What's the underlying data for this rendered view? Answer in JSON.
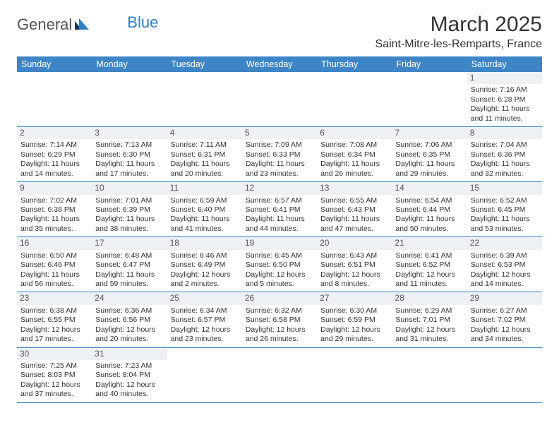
{
  "logo": {
    "textA": "General",
    "textB": "Blue"
  },
  "title": "March 2025",
  "location": "Saint-Mitre-les-Remparts, France",
  "colors": {
    "headerBar": "#3d85c6",
    "rowDivider": "#3d85c6",
    "dayNumBg": "#eef1f3",
    "text": "#333333",
    "logoBlue": "#2f7fc2",
    "background": "#ffffff"
  },
  "weekdays": [
    "Sunday",
    "Monday",
    "Tuesday",
    "Wednesday",
    "Thursday",
    "Friday",
    "Saturday"
  ],
  "weeks": [
    [
      null,
      null,
      null,
      null,
      null,
      null,
      {
        "n": "1",
        "sunrise": "Sunrise: 7:16 AM",
        "sunset": "Sunset: 6:28 PM",
        "day1": "Daylight: 11 hours",
        "day2": "and 11 minutes."
      }
    ],
    [
      {
        "n": "2",
        "sunrise": "Sunrise: 7:14 AM",
        "sunset": "Sunset: 6:29 PM",
        "day1": "Daylight: 11 hours",
        "day2": "and 14 minutes."
      },
      {
        "n": "3",
        "sunrise": "Sunrise: 7:13 AM",
        "sunset": "Sunset: 6:30 PM",
        "day1": "Daylight: 11 hours",
        "day2": "and 17 minutes."
      },
      {
        "n": "4",
        "sunrise": "Sunrise: 7:11 AM",
        "sunset": "Sunset: 6:31 PM",
        "day1": "Daylight: 11 hours",
        "day2": "and 20 minutes."
      },
      {
        "n": "5",
        "sunrise": "Sunrise: 7:09 AM",
        "sunset": "Sunset: 6:33 PM",
        "day1": "Daylight: 11 hours",
        "day2": "and 23 minutes."
      },
      {
        "n": "6",
        "sunrise": "Sunrise: 7:08 AM",
        "sunset": "Sunset: 6:34 PM",
        "day1": "Daylight: 11 hours",
        "day2": "and 26 minutes."
      },
      {
        "n": "7",
        "sunrise": "Sunrise: 7:06 AM",
        "sunset": "Sunset: 6:35 PM",
        "day1": "Daylight: 11 hours",
        "day2": "and 29 minutes."
      },
      {
        "n": "8",
        "sunrise": "Sunrise: 7:04 AM",
        "sunset": "Sunset: 6:36 PM",
        "day1": "Daylight: 11 hours",
        "day2": "and 32 minutes."
      }
    ],
    [
      {
        "n": "9",
        "sunrise": "Sunrise: 7:02 AM",
        "sunset": "Sunset: 6:38 PM",
        "day1": "Daylight: 11 hours",
        "day2": "and 35 minutes."
      },
      {
        "n": "10",
        "sunrise": "Sunrise: 7:01 AM",
        "sunset": "Sunset: 6:39 PM",
        "day1": "Daylight: 11 hours",
        "day2": "and 38 minutes."
      },
      {
        "n": "11",
        "sunrise": "Sunrise: 6:59 AM",
        "sunset": "Sunset: 6:40 PM",
        "day1": "Daylight: 11 hours",
        "day2": "and 41 minutes."
      },
      {
        "n": "12",
        "sunrise": "Sunrise: 6:57 AM",
        "sunset": "Sunset: 6:41 PM",
        "day1": "Daylight: 11 hours",
        "day2": "and 44 minutes."
      },
      {
        "n": "13",
        "sunrise": "Sunrise: 6:55 AM",
        "sunset": "Sunset: 6:43 PM",
        "day1": "Daylight: 11 hours",
        "day2": "and 47 minutes."
      },
      {
        "n": "14",
        "sunrise": "Sunrise: 6:54 AM",
        "sunset": "Sunset: 6:44 PM",
        "day1": "Daylight: 11 hours",
        "day2": "and 50 minutes."
      },
      {
        "n": "15",
        "sunrise": "Sunrise: 6:52 AM",
        "sunset": "Sunset: 6:45 PM",
        "day1": "Daylight: 11 hours",
        "day2": "and 53 minutes."
      }
    ],
    [
      {
        "n": "16",
        "sunrise": "Sunrise: 6:50 AM",
        "sunset": "Sunset: 6:46 PM",
        "day1": "Daylight: 11 hours",
        "day2": "and 56 minutes."
      },
      {
        "n": "17",
        "sunrise": "Sunrise: 6:48 AM",
        "sunset": "Sunset: 6:47 PM",
        "day1": "Daylight: 11 hours",
        "day2": "and 59 minutes."
      },
      {
        "n": "18",
        "sunrise": "Sunrise: 6:46 AM",
        "sunset": "Sunset: 6:49 PM",
        "day1": "Daylight: 12 hours",
        "day2": "and 2 minutes."
      },
      {
        "n": "19",
        "sunrise": "Sunrise: 6:45 AM",
        "sunset": "Sunset: 6:50 PM",
        "day1": "Daylight: 12 hours",
        "day2": "and 5 minutes."
      },
      {
        "n": "20",
        "sunrise": "Sunrise: 6:43 AM",
        "sunset": "Sunset: 6:51 PM",
        "day1": "Daylight: 12 hours",
        "day2": "and 8 minutes."
      },
      {
        "n": "21",
        "sunrise": "Sunrise: 6:41 AM",
        "sunset": "Sunset: 6:52 PM",
        "day1": "Daylight: 12 hours",
        "day2": "and 11 minutes."
      },
      {
        "n": "22",
        "sunrise": "Sunrise: 6:39 AM",
        "sunset": "Sunset: 6:53 PM",
        "day1": "Daylight: 12 hours",
        "day2": "and 14 minutes."
      }
    ],
    [
      {
        "n": "23",
        "sunrise": "Sunrise: 6:38 AM",
        "sunset": "Sunset: 6:55 PM",
        "day1": "Daylight: 12 hours",
        "day2": "and 17 minutes."
      },
      {
        "n": "24",
        "sunrise": "Sunrise: 6:36 AM",
        "sunset": "Sunset: 6:56 PM",
        "day1": "Daylight: 12 hours",
        "day2": "and 20 minutes."
      },
      {
        "n": "25",
        "sunrise": "Sunrise: 6:34 AM",
        "sunset": "Sunset: 6:57 PM",
        "day1": "Daylight: 12 hours",
        "day2": "and 23 minutes."
      },
      {
        "n": "26",
        "sunrise": "Sunrise: 6:32 AM",
        "sunset": "Sunset: 6:58 PM",
        "day1": "Daylight: 12 hours",
        "day2": "and 26 minutes."
      },
      {
        "n": "27",
        "sunrise": "Sunrise: 6:30 AM",
        "sunset": "Sunset: 6:59 PM",
        "day1": "Daylight: 12 hours",
        "day2": "and 29 minutes."
      },
      {
        "n": "28",
        "sunrise": "Sunrise: 6:29 AM",
        "sunset": "Sunset: 7:01 PM",
        "day1": "Daylight: 12 hours",
        "day2": "and 31 minutes."
      },
      {
        "n": "29",
        "sunrise": "Sunrise: 6:27 AM",
        "sunset": "Sunset: 7:02 PM",
        "day1": "Daylight: 12 hours",
        "day2": "and 34 minutes."
      }
    ],
    [
      {
        "n": "30",
        "sunrise": "Sunrise: 7:25 AM",
        "sunset": "Sunset: 8:03 PM",
        "day1": "Daylight: 12 hours",
        "day2": "and 37 minutes."
      },
      {
        "n": "31",
        "sunrise": "Sunrise: 7:23 AM",
        "sunset": "Sunset: 8:04 PM",
        "day1": "Daylight: 12 hours",
        "day2": "and 40 minutes."
      },
      null,
      null,
      null,
      null,
      null
    ]
  ]
}
